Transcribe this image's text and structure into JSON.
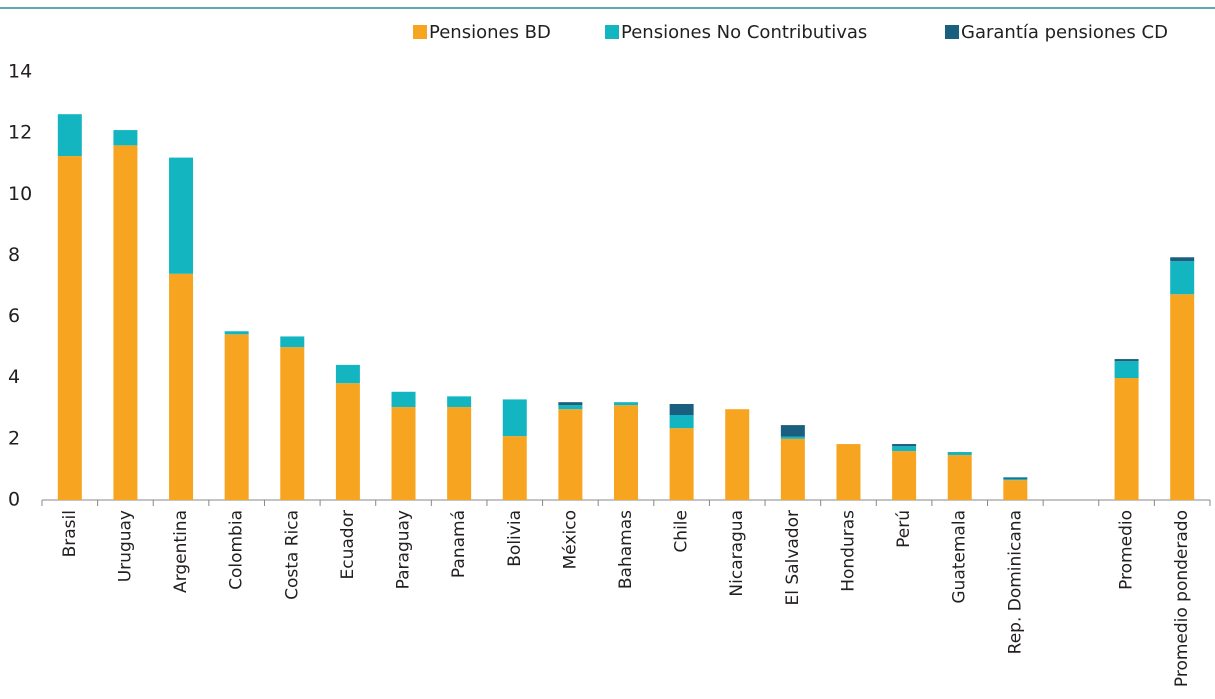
{
  "chart_data": {
    "type": "stacked_bar",
    "categories": [
      "Brasil",
      "Uruguay",
      "Argentina",
      "Colombia",
      "Costa Rica",
      "Ecuador",
      "Paraguay",
      "Panamá",
      "Bolivia",
      "México",
      "Bahamas",
      "Chile",
      "Nicaragua",
      "El Salvador",
      "Honduras",
      "Perú",
      "Guatemala",
      "Rep. Dominicana",
      null,
      "Promedio",
      "Promedio ponderado"
    ],
    "series": [
      {
        "name": "Pensiones BD",
        "color": "#f7a520",
        "values": [
          11.25,
          11.6,
          7.4,
          5.42,
          5.0,
          3.82,
          3.04,
          3.04,
          2.09,
          2.97,
          3.1,
          2.35,
          2.97,
          2.0,
          1.83,
          1.6,
          1.47,
          0.65,
          null,
          3.99,
          6.73
        ]
      },
      {
        "name": "Pensiones No Contributivas",
        "color": "#13b5c0",
        "values": [
          1.37,
          0.5,
          3.8,
          0.1,
          0.35,
          0.6,
          0.5,
          0.35,
          1.2,
          0.13,
          0.1,
          0.43,
          0,
          0.07,
          0,
          0.16,
          0.1,
          0.04,
          null,
          0.55,
          1.08
        ]
      },
      {
        "name": "Garantía pensiones CD",
        "color": "#1b5f80",
        "values": [
          0,
          0,
          0,
          0,
          0,
          0,
          0,
          0,
          0,
          0.1,
          0,
          0.36,
          0,
          0.38,
          0,
          0.07,
          0,
          0.05,
          null,
          0.07,
          0.13
        ]
      }
    ],
    "ylim": [
      0,
      14
    ],
    "yticks": [
      0,
      2,
      4,
      6,
      8,
      10,
      12,
      14
    ],
    "grid": false,
    "legend": "top-right"
  }
}
